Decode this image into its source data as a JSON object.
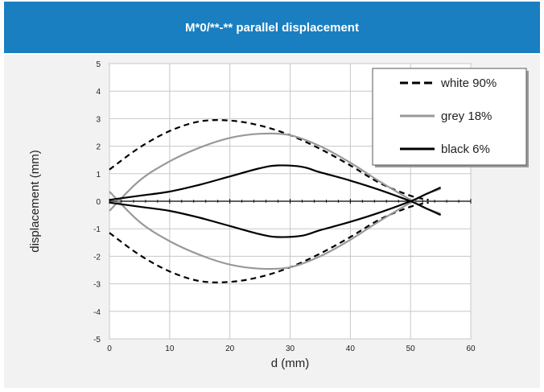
{
  "chart_data": {
    "type": "line",
    "title": "M*0/**-**  parallel displacement",
    "xlabel": "d (mm)",
    "ylabel": "displacement (mm)",
    "xlim": [
      0,
      60
    ],
    "ylim": [
      -5,
      5
    ],
    "x_ticks": [
      "0",
      "10",
      "20",
      "30",
      "40",
      "50",
      "60"
    ],
    "y_ticks": [
      "5",
      "4",
      "3",
      "2",
      "1",
      "0",
      "-1",
      "-2",
      "-3",
      "-4",
      "-5"
    ],
    "grid": true,
    "legend_position": "top-right",
    "series": [
      {
        "name": "white 90%",
        "color": "#000000",
        "style": "dashed",
        "group": "upper",
        "x": [
          0,
          5,
          10,
          15,
          20,
          25,
          30,
          35,
          40,
          45,
          50,
          53
        ],
        "y": [
          1.15,
          1.95,
          2.55,
          2.9,
          2.93,
          2.75,
          2.4,
          1.9,
          1.3,
          0.65,
          0.2,
          0.05
        ]
      },
      {
        "name": "",
        "color": "#000000",
        "style": "dashed",
        "group": "lower",
        "x": [
          0,
          5,
          10,
          15,
          20,
          25,
          30,
          35,
          40,
          45,
          50,
          53
        ],
        "y": [
          -1.15,
          -1.95,
          -2.55,
          -2.9,
          -2.93,
          -2.75,
          -2.4,
          -1.9,
          -1.3,
          -0.65,
          -0.2,
          -0.05
        ]
      },
      {
        "name": "grey 18%",
        "color": "#999999",
        "style": "solid",
        "group": "upper",
        "x": [
          0,
          5,
          10,
          15,
          20,
          25,
          30,
          35,
          40,
          45,
          50,
          52.5,
          55
        ],
        "y": [
          -0.35,
          0.75,
          1.45,
          1.95,
          2.3,
          2.45,
          2.4,
          2.0,
          1.4,
          0.7,
          0.05,
          -0.25,
          -0.45
        ]
      },
      {
        "name": "",
        "color": "#999999",
        "style": "solid",
        "group": "lower",
        "x": [
          0,
          5,
          10,
          15,
          20,
          25,
          30,
          35,
          40,
          45,
          50,
          52.5,
          55
        ],
        "y": [
          0.35,
          -0.75,
          -1.45,
          -1.95,
          -2.3,
          -2.45,
          -2.4,
          -2.0,
          -1.4,
          -0.7,
          -0.05,
          0.25,
          0.45
        ]
      },
      {
        "name": "black 6%",
        "color": "#000000",
        "style": "solid",
        "group": "upper",
        "x": [
          0,
          5,
          10,
          15,
          20,
          25,
          28,
          32,
          35,
          40,
          45,
          50,
          52.5,
          55
        ],
        "y": [
          0.05,
          0.2,
          0.35,
          0.6,
          0.9,
          1.2,
          1.3,
          1.25,
          1.05,
          0.75,
          0.4,
          0.0,
          -0.25,
          -0.5
        ]
      },
      {
        "name": "",
        "color": "#000000",
        "style": "solid",
        "group": "lower",
        "x": [
          0,
          5,
          10,
          15,
          20,
          25,
          28,
          32,
          35,
          40,
          45,
          50,
          52.5,
          55
        ],
        "y": [
          -0.05,
          -0.2,
          -0.35,
          -0.6,
          -0.9,
          -1.2,
          -1.3,
          -1.25,
          -1.05,
          -0.75,
          -0.4,
          0.0,
          0.25,
          0.5
        ]
      }
    ]
  }
}
